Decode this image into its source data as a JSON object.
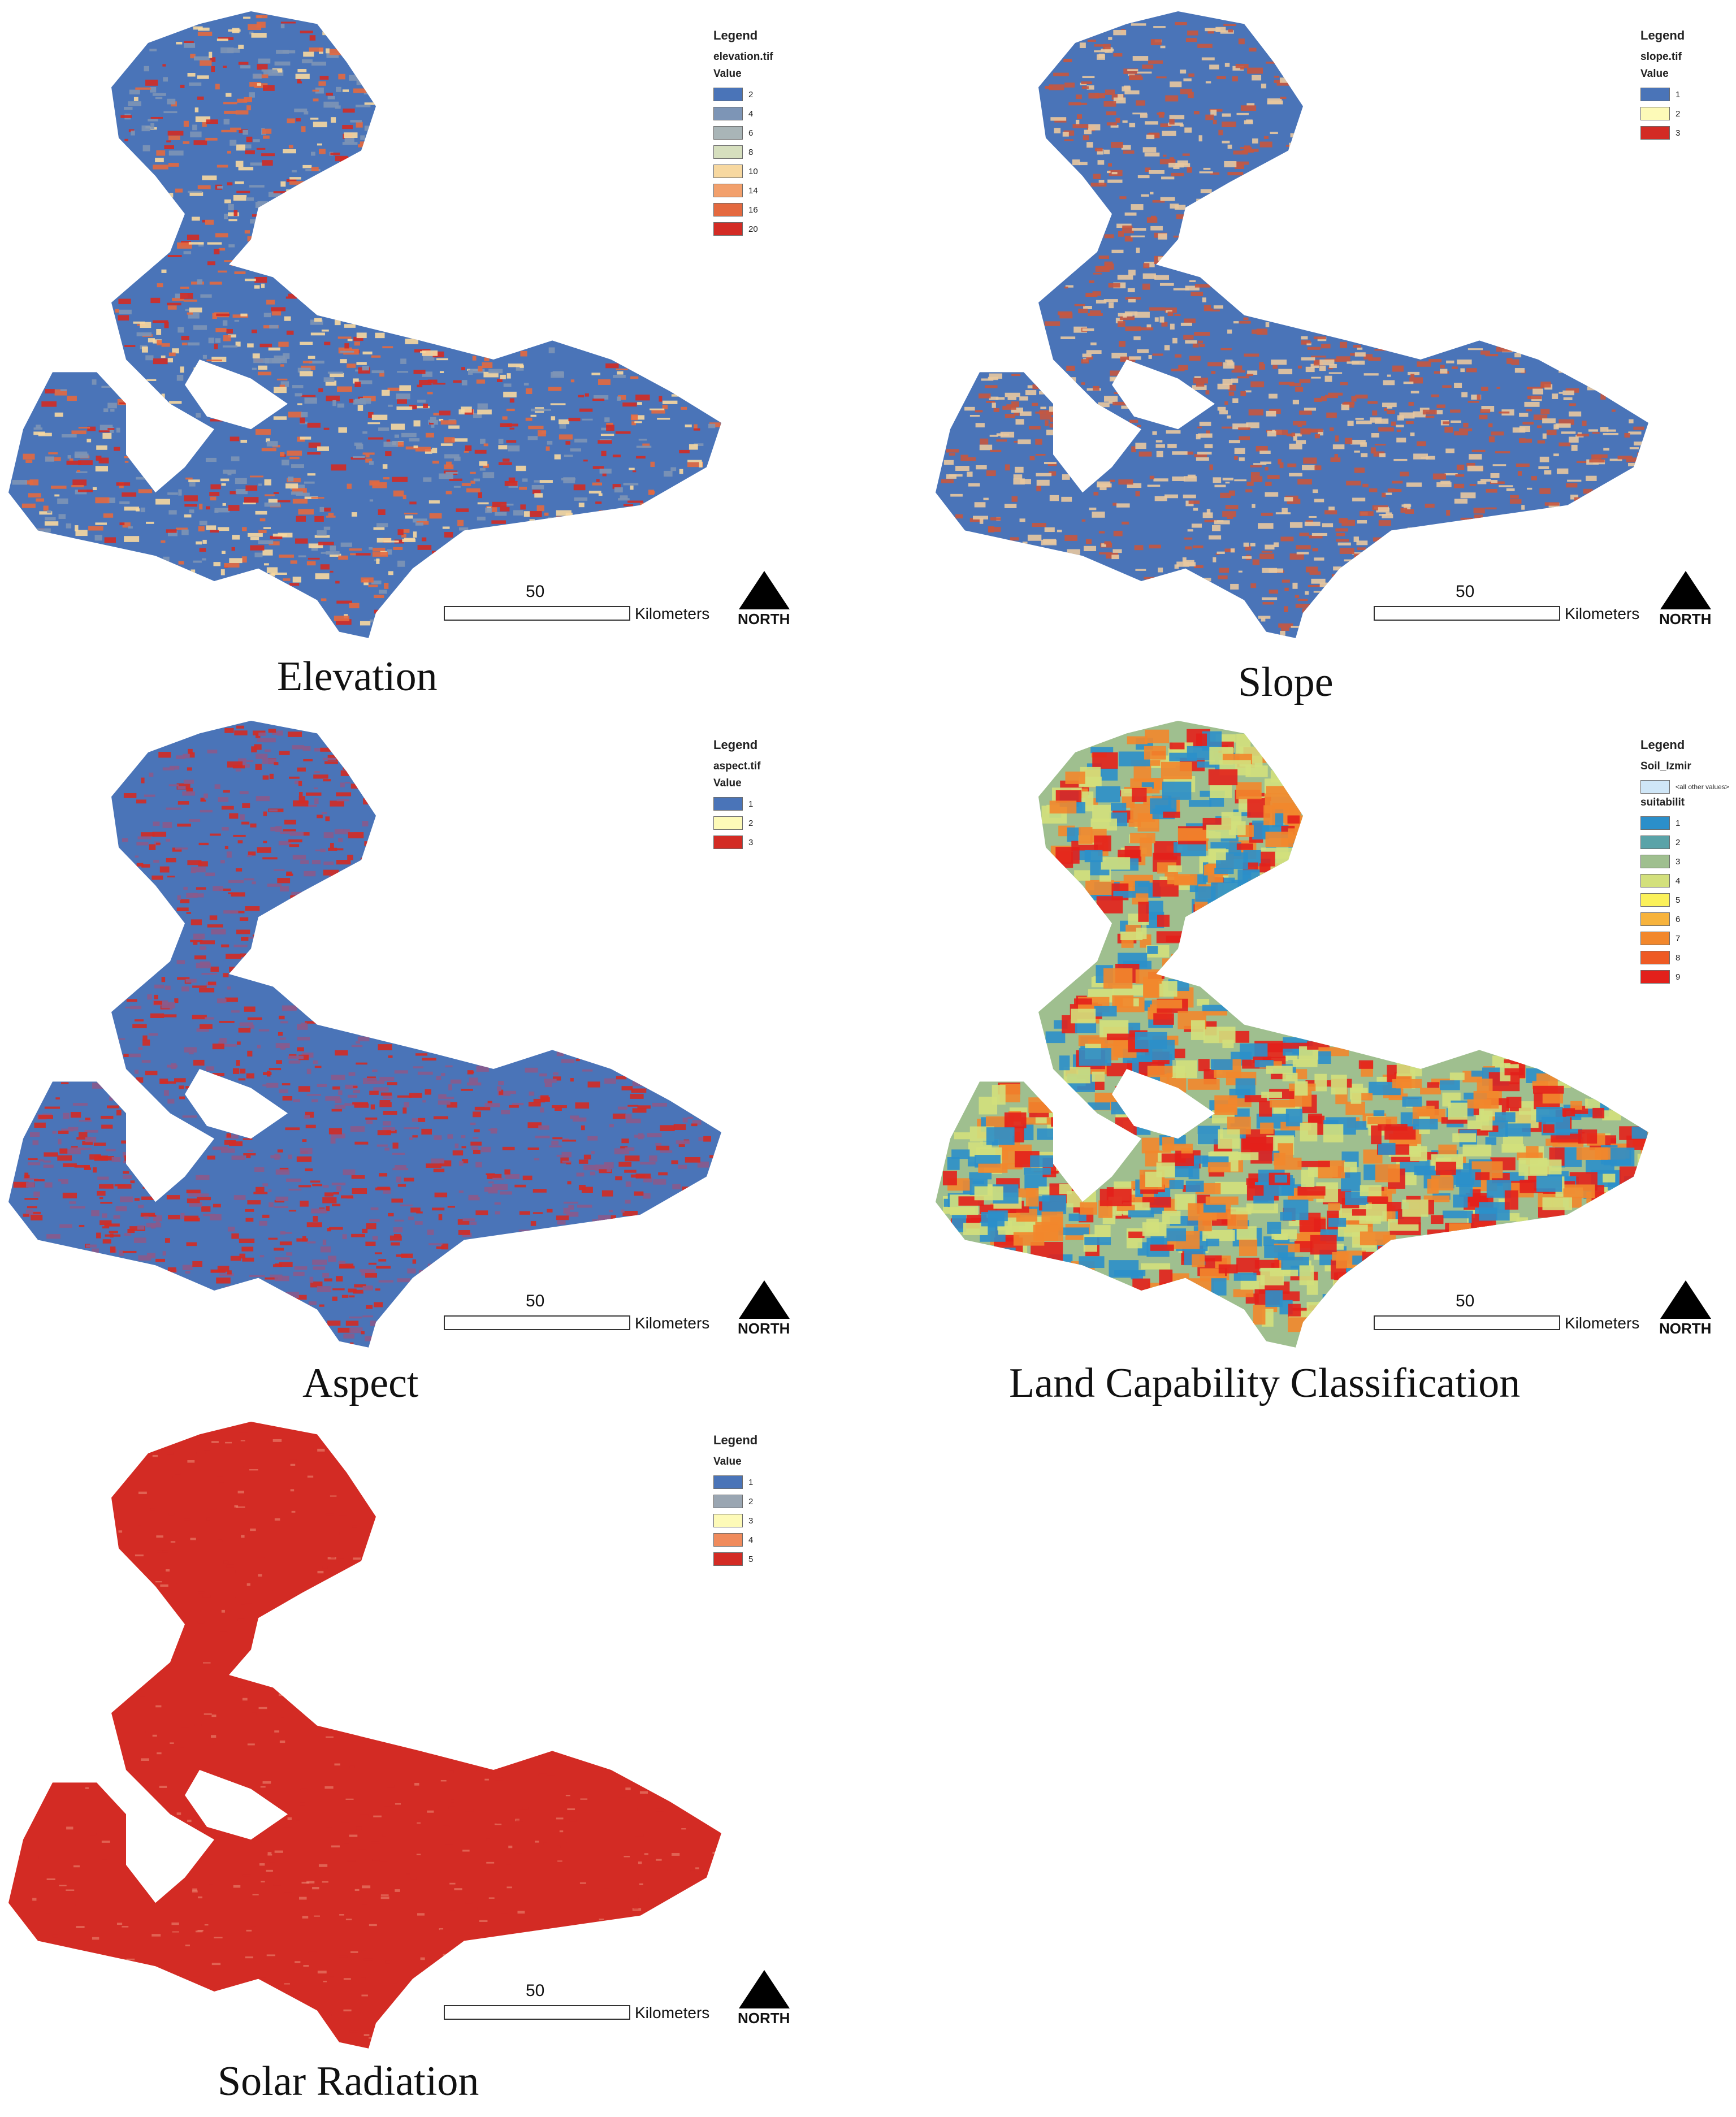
{
  "common": {
    "scale_value": "50",
    "scale_unit": "Kilometers",
    "north_label": "NORTH"
  },
  "panels": [
    {
      "id": "elevation",
      "caption": "Elevation",
      "legend_title": "Legend",
      "layer": "elevation.tif",
      "field": "Value",
      "entries": [
        {
          "label": "2",
          "color": "#4a74b8"
        },
        {
          "label": "4",
          "color": "#7d95b6"
        },
        {
          "label": "6",
          "color": "#a9b5b7"
        },
        {
          "label": "8",
          "color": "#d6dfbe"
        },
        {
          "label": "10",
          "color": "#f7d8a0"
        },
        {
          "label": "14",
          "color": "#f2a06c"
        },
        {
          "label": "16",
          "color": "#e4693f"
        },
        {
          "label": "20",
          "color": "#d32b24"
        }
      ],
      "map_palette": [
        "#4a74b8",
        "#7d95b6",
        "#f7d8a0",
        "#e4693f",
        "#d32b24"
      ]
    },
    {
      "id": "slope",
      "caption": "Slope",
      "legend_title": "Legend",
      "layer": "slope.tif",
      "field": "Value",
      "entries": [
        {
          "label": "1",
          "color": "#4a74b8"
        },
        {
          "label": "2",
          "color": "#fdfab8"
        },
        {
          "label": "3",
          "color": "#d32b24"
        }
      ],
      "map_palette": [
        "#4a74b8",
        "#c6573f",
        "#e8c8a0"
      ]
    },
    {
      "id": "aspect",
      "caption": "Aspect",
      "legend_title": "Legend",
      "layer": "aspect.tif",
      "field": "Value",
      "entries": [
        {
          "label": "1",
          "color": "#4a74b8"
        },
        {
          "label": "2",
          "color": "#fdfab8"
        },
        {
          "label": "3",
          "color": "#d32b24"
        }
      ],
      "map_palette": [
        "#4a74b8",
        "#d32b24",
        "#8a5a8c"
      ]
    },
    {
      "id": "land-capability",
      "caption": "Land Capability Classification",
      "legend_title": "Legend",
      "layer": "Soil_Izmir",
      "other_label": "<all other values>",
      "other_color": "#cfe6f7",
      "field": "suitabilit",
      "entries": [
        {
          "label": "1",
          "color": "#2b8fca"
        },
        {
          "label": "2",
          "color": "#5aa3a8"
        },
        {
          "label": "3",
          "color": "#9fbf8f"
        },
        {
          "label": "4",
          "color": "#d3e07c"
        },
        {
          "label": "5",
          "color": "#fbf15a"
        },
        {
          "label": "6",
          "color": "#f7b33c"
        },
        {
          "label": "7",
          "color": "#f2872c"
        },
        {
          "label": "8",
          "color": "#ee5a24"
        },
        {
          "label": "9",
          "color": "#e3201b"
        }
      ],
      "map_palette": [
        "#9fbf8f",
        "#e3201b",
        "#f2872c",
        "#2b8fca",
        "#d3e07c"
      ]
    },
    {
      "id": "solar-radiation",
      "caption": "Solar Radiation",
      "legend_title": "Legend",
      "layer": "",
      "field": "Value",
      "entries": [
        {
          "label": "1",
          "color": "#4a74b8"
        },
        {
          "label": "2",
          "color": "#9aa6b2"
        },
        {
          "label": "3",
          "color": "#fdfab8"
        },
        {
          "label": "4",
          "color": "#f08b5c"
        },
        {
          "label": "5",
          "color": "#d32b24"
        }
      ],
      "map_palette": [
        "#d32b24",
        "#d32b24",
        "#ec8f7a"
      ]
    }
  ]
}
